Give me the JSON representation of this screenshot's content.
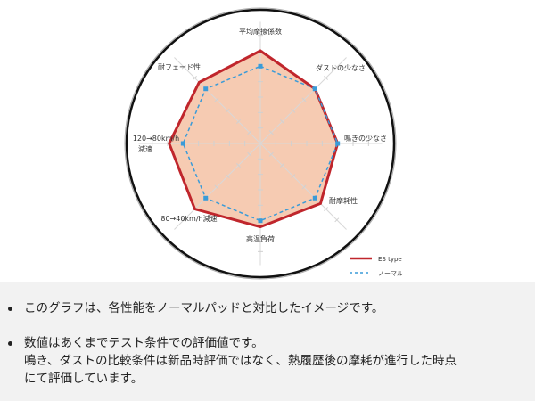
{
  "chart_data": {
    "type": "radar",
    "title": "",
    "axes": [
      "平均摩擦係数",
      "ダストの少なさ",
      "鳴きの少なさ",
      "耐摩耗性",
      "高温負荷",
      "80→40km/h減速",
      "120→80km/h 減速",
      "耐フェード性"
    ],
    "axis_label_lines": [
      [
        "平均摩擦係数"
      ],
      [
        "ダストの少なさ"
      ],
      [
        "鳴きの少なさ"
      ],
      [
        "耐摩耗性"
      ],
      [
        "高温負荷"
      ],
      [
        "80→40km/h減速"
      ],
      [
        "120→80km/h",
        "減速"
      ],
      [
        "耐フェード性"
      ]
    ],
    "range": [
      0,
      7.5
    ],
    "grid": true,
    "legend_position": "bottom-right",
    "series": [
      {
        "name": "ES type",
        "color": "#c0262c",
        "fill": "#f6cbb2",
        "style": "solid",
        "values": [
          6.0,
          5.0,
          5.0,
          5.5,
          5.4,
          6.0,
          5.9,
          5.6
        ]
      },
      {
        "name": "ノーマル",
        "color": "#3a9bd8",
        "style": "dashed",
        "values": [
          5.0,
          5.0,
          5.0,
          5.0,
          5.0,
          5.0,
          5.0,
          5.0
        ]
      }
    ]
  },
  "notes": [
    {
      "lines": [
        "このグラフは、各性能をノーマルパッドと対比したイメージです。"
      ]
    },
    {
      "lines": [
        "数値はあくまでテスト条件での評価値です。",
        "鳴き、ダストの比較条件は新品時評価ではなく、熱履歴後の摩耗が進行した時点",
        "にて評価しています。"
      ]
    }
  ]
}
